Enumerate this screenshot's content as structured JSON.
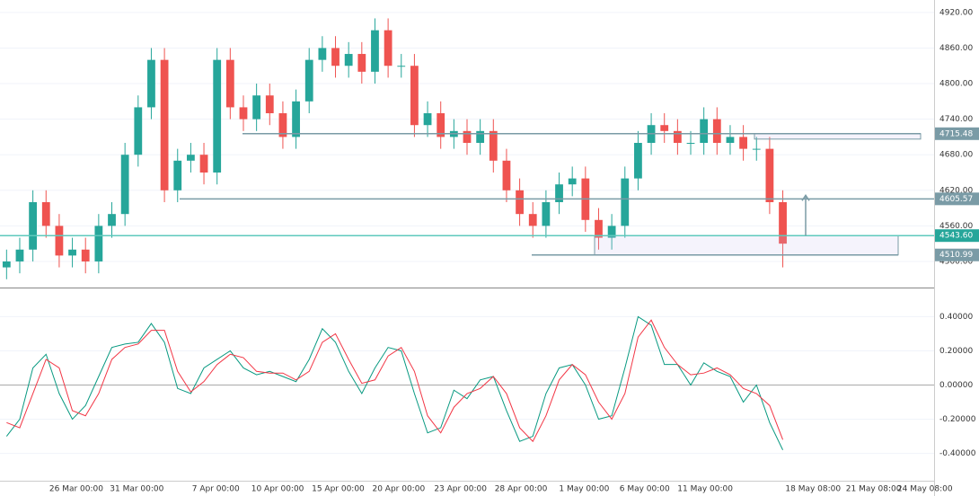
{
  "chart_data": [
    {
      "type": "candlestick",
      "up_color": "#26a69a",
      "down_color": "#ef5350",
      "xlim": [
        -0.5,
        70.5
      ],
      "ylim": [
        4456,
        4941
      ],
      "yticks": [
        {
          "value": 4500,
          "label": "4500.00"
        },
        {
          "value": 4560,
          "label": "4560.00"
        },
        {
          "value": 4620,
          "label": "4620.00"
        },
        {
          "value": 4680,
          "label": "4680.00"
        },
        {
          "value": 4740,
          "label": "4740.00"
        },
        {
          "value": 4800,
          "label": "4800.00"
        },
        {
          "value": 4860,
          "label": "4860.00"
        },
        {
          "value": 4920,
          "label": "4920.00"
        }
      ],
      "open": [
        4490,
        4500,
        4520,
        4600,
        4560,
        4510,
        4520,
        4500,
        4560,
        4580,
        4680,
        4760,
        4840,
        4620,
        4670,
        4680,
        4650,
        4840,
        4760,
        4740,
        4780,
        4750,
        4710,
        4770,
        4840,
        4860,
        4830,
        4850,
        4820,
        4890,
        4830,
        4830,
        4730,
        4750,
        4710,
        4720,
        4700,
        4720,
        4670,
        4620,
        4580,
        4560,
        4600,
        4630,
        4640,
        4570,
        4540,
        4560,
        4640,
        4700,
        4730,
        4720,
        4700,
        4700,
        4740,
        4700,
        4710,
        4690,
        4690,
        4600
      ],
      "high": [
        4520,
        4540,
        4620,
        4620,
        4580,
        4540,
        4540,
        4580,
        4600,
        4700,
        4780,
        4860,
        4860,
        4690,
        4700,
        4700,
        4860,
        4860,
        4780,
        4800,
        4800,
        4770,
        4790,
        4860,
        4880,
        4880,
        4870,
        4870,
        4910,
        4910,
        4850,
        4850,
        4770,
        4770,
        4740,
        4740,
        4740,
        4740,
        4690,
        4640,
        4600,
        4620,
        4650,
        4660,
        4660,
        4590,
        4580,
        4660,
        4720,
        4750,
        4750,
        4740,
        4720,
        4760,
        4760,
        4730,
        4730,
        4710,
        4710,
        4620
      ],
      "low": [
        4470,
        4480,
        4500,
        4540,
        4490,
        4490,
        4480,
        4480,
        4540,
        4560,
        4660,
        4740,
        4600,
        4600,
        4650,
        4630,
        4630,
        4740,
        4720,
        4720,
        4730,
        4690,
        4690,
        4750,
        4820,
        4810,
        4810,
        4800,
        4800,
        4810,
        4810,
        4710,
        4710,
        4690,
        4690,
        4680,
        4680,
        4650,
        4600,
        4560,
        4540,
        4540,
        4580,
        4610,
        4550,
        4520,
        4520,
        4540,
        4620,
        4680,
        4700,
        4680,
        4680,
        4680,
        4680,
        4680,
        4670,
        4670,
        4580,
        4490
      ],
      "close": [
        4500,
        4520,
        4600,
        4560,
        4510,
        4520,
        4500,
        4560,
        4580,
        4680,
        4760,
        4840,
        4620,
        4670,
        4680,
        4650,
        4840,
        4760,
        4740,
        4780,
        4750,
        4710,
        4770,
        4840,
        4860,
        4830,
        4850,
        4820,
        4890,
        4830,
        4830,
        4730,
        4750,
        4710,
        4720,
        4700,
        4720,
        4670,
        4620,
        4580,
        4560,
        4600,
        4630,
        4640,
        4570,
        4540,
        4560,
        4640,
        4700,
        4730,
        4720,
        4700,
        4700,
        4740,
        4700,
        4710,
        4690,
        4690,
        4600,
        4530
      ],
      "levels": [
        {
          "value": 4715.48,
          "label": "4715.48"
        },
        {
          "value": 4605.57,
          "label": "4605.57"
        },
        {
          "value": 4543.6,
          "label": "4543.60"
        },
        {
          "value": 4510.99,
          "label": "4510.99"
        }
      ]
    },
    {
      "type": "line",
      "xlim": [
        -0.5,
        70.5
      ],
      "ylim": [
        -0.56,
        0.56
      ],
      "yticks": [
        {
          "value": -0.4,
          "label": "-0.40000"
        },
        {
          "value": -0.2,
          "label": "-0.20000"
        },
        {
          "value": 0,
          "label": "0.00000"
        },
        {
          "value": 0.2,
          "label": "0.20000"
        },
        {
          "value": 0.4,
          "label": "0.40000"
        }
      ],
      "xticks": [
        {
          "value": 5.3,
          "label": "26 Mar 00:00"
        },
        {
          "value": 9.9,
          "label": "31 Mar 00:00"
        },
        {
          "value": 15.9,
          "label": "7 Apr 00:00"
        },
        {
          "value": 20.6,
          "label": "10 Apr 00:00"
        },
        {
          "value": 25.2,
          "label": "15 Apr 00:00"
        },
        {
          "value": 29.8,
          "label": "20 Apr 00:00"
        },
        {
          "value": 34.5,
          "label": "23 Apr 00:00"
        },
        {
          "value": 39.1,
          "label": "28 Apr 00:00"
        },
        {
          "value": 43.9,
          "label": "1 May 00:00"
        },
        {
          "value": 48.5,
          "label": "6 May 00:00"
        },
        {
          "value": 53.1,
          "label": "11 May 00:00"
        },
        {
          "value": 61.3,
          "label": "18 May 08:00"
        },
        {
          "value": 65.9,
          "label": "21 May 08:00"
        },
        {
          "value": 69.8,
          "label": "24 May 08:00"
        }
      ],
      "series": [
        {
          "color": "#089981",
          "values": [
            -0.3,
            -0.2,
            0.1,
            0.18,
            -0.05,
            -0.2,
            -0.12,
            0.05,
            0.22,
            0.24,
            0.25,
            0.36,
            0.25,
            -0.02,
            -0.05,
            0.1,
            0.15,
            0.2,
            0.1,
            0.06,
            0.08,
            0.05,
            0.02,
            0.15,
            0.33,
            0.25,
            0.08,
            -0.05,
            0.1,
            0.22,
            0.2,
            -0.05,
            -0.28,
            -0.25,
            -0.03,
            -0.08,
            0.03,
            0.05,
            -0.15,
            -0.33,
            -0.3,
            -0.05,
            0.1,
            0.12,
            0.0,
            -0.2,
            -0.18,
            0.1,
            0.4,
            0.35,
            0.12,
            0.12,
            0.0,
            0.13,
            0.08,
            0.05,
            -0.1,
            0.0,
            -0.22,
            -0.38
          ]
        },
        {
          "color": "#f23645",
          "values": [
            -0.22,
            -0.25,
            -0.05,
            0.15,
            0.1,
            -0.15,
            -0.18,
            -0.05,
            0.15,
            0.22,
            0.24,
            0.32,
            0.32,
            0.08,
            -0.04,
            0.02,
            0.12,
            0.18,
            0.16,
            0.08,
            0.07,
            0.07,
            0.03,
            0.08,
            0.25,
            0.3,
            0.15,
            0.01,
            0.03,
            0.17,
            0.22,
            0.08,
            -0.18,
            -0.28,
            -0.13,
            -0.05,
            -0.02,
            0.05,
            -0.05,
            -0.25,
            -0.33,
            -0.18,
            0.03,
            0.12,
            0.06,
            -0.1,
            -0.2,
            -0.05,
            0.28,
            0.38,
            0.22,
            0.12,
            0.06,
            0.07,
            0.1,
            0.06,
            -0.02,
            -0.05,
            -0.12,
            -0.32
          ]
        }
      ]
    }
  ]
}
